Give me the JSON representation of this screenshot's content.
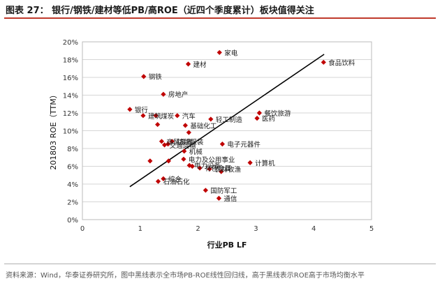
{
  "page": {
    "title": "图表 27： 银行/钢铁/建材等低PB/高ROE（近四个季度累计）板块值得关注",
    "source": "资料来源：Wind，华泰证券研究所，图中黑线表示全市场PB-ROE线性回归线，高于黑线表示ROE高于市场均衡水平"
  },
  "chart_data": {
    "type": "scatter",
    "title": "",
    "xlabel": "行业PB LF",
    "ylabel": "201803 ROE（TTM）",
    "xlim": [
      0,
      5
    ],
    "ylim": [
      0,
      0.2
    ],
    "xticks": [
      0,
      1,
      2,
      3,
      4,
      5
    ],
    "yticks": [
      0,
      0.02,
      0.04,
      0.06,
      0.08,
      0.1,
      0.12,
      0.14,
      0.16,
      0.18,
      0.2
    ],
    "xtick_labels": [
      "0",
      "1",
      "2",
      "3",
      "4",
      "5"
    ],
    "ytick_labels": [
      "0%",
      "2%",
      "4%",
      "6%",
      "8%",
      "10%",
      "12%",
      "14%",
      "16%",
      "18%",
      "20%"
    ],
    "marker_color": "#c00000",
    "regression_line": {
      "x": [
        0.82,
        4.18
      ],
      "y": [
        0.037,
        0.186
      ],
      "color": "#000000"
    },
    "points": [
      {
        "x": 2.37,
        "y": 0.188,
        "label": "家电"
      },
      {
        "x": 4.17,
        "y": 0.177,
        "label": "食品饮料"
      },
      {
        "x": 1.83,
        "y": 0.175,
        "label": "建材"
      },
      {
        "x": 1.06,
        "y": 0.161,
        "label": "钢铁"
      },
      {
        "x": 1.4,
        "y": 0.141,
        "label": "房地产"
      },
      {
        "x": 0.82,
        "y": 0.124,
        "label": "银行"
      },
      {
        "x": 1.05,
        "y": 0.117,
        "label": "建筑"
      },
      {
        "x": 1.27,
        "y": 0.117,
        "label": "煤炭"
      },
      {
        "x": 1.64,
        "y": 0.117,
        "label": "汽车"
      },
      {
        "x": 2.22,
        "y": 0.113,
        "label": "轻工制造"
      },
      {
        "x": 3.06,
        "y": 0.12,
        "label": "餐饮旅游"
      },
      {
        "x": 3.02,
        "y": 0.114,
        "label": "医药"
      },
      {
        "x": 1.78,
        "y": 0.106,
        "label": "基础化工"
      },
      {
        "x": 1.3,
        "y": 0.107,
        "label": ""
      },
      {
        "x": 1.84,
        "y": 0.098,
        "label": ""
      },
      {
        "x": 1.37,
        "y": 0.088,
        "label": "商贸零售"
      },
      {
        "x": 1.55,
        "y": 0.088,
        "label": "纺织服装"
      },
      {
        "x": 1.42,
        "y": 0.084,
        "label": "交通运输"
      },
      {
        "x": 1.48,
        "y": 0.085,
        "label": ""
      },
      {
        "x": 2.42,
        "y": 0.085,
        "label": "电子元器件"
      },
      {
        "x": 1.76,
        "y": 0.077,
        "label": "机械"
      },
      {
        "x": 1.17,
        "y": 0.066,
        "label": ""
      },
      {
        "x": 1.49,
        "y": 0.066,
        "label": ""
      },
      {
        "x": 1.75,
        "y": 0.068,
        "label": "电力及公用事业"
      },
      {
        "x": 1.85,
        "y": 0.061,
        "label": "电力设备"
      },
      {
        "x": 1.9,
        "y": 0.06,
        "label": ""
      },
      {
        "x": 2.03,
        "y": 0.058,
        "label": "有色金属"
      },
      {
        "x": 2.2,
        "y": 0.057,
        "label": "农林牧渔"
      },
      {
        "x": 2.9,
        "y": 0.064,
        "label": "计算机"
      },
      {
        "x": 2.4,
        "y": 0.054,
        "label": ""
      },
      {
        "x": 1.31,
        "y": 0.043,
        "label": "石油石化"
      },
      {
        "x": 1.4,
        "y": 0.046,
        "label": "综合"
      },
      {
        "x": 2.13,
        "y": 0.033,
        "label": "国防军工"
      },
      {
        "x": 2.36,
        "y": 0.024,
        "label": "通信"
      }
    ]
  }
}
